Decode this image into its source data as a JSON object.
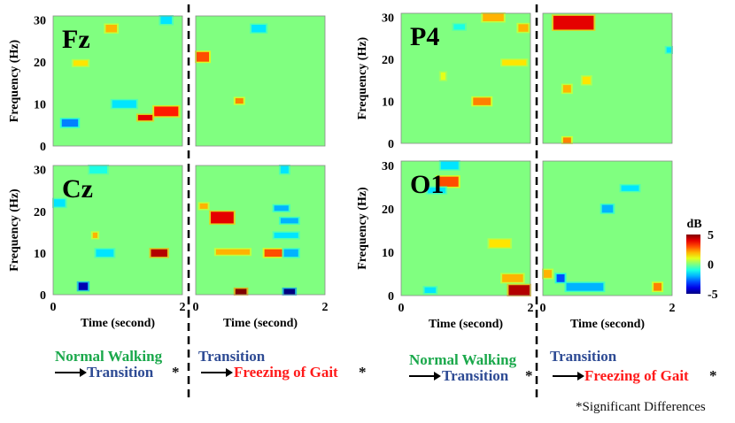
{
  "chart_data": {
    "type": "heatmap",
    "ylabel": "Frequency (Hz)",
    "xlabel": "Time (second)",
    "xlim": [
      0,
      2
    ],
    "ylim": [
      0,
      31
    ],
    "x_ticks": [
      "0",
      "2"
    ],
    "y_ticks": [
      "0",
      "10",
      "20",
      "30"
    ],
    "background_value_dB": 0,
    "colorbar": {
      "label": "dB",
      "min": -5,
      "max": 5,
      "ticks": [
        "5",
        "0",
        "-5"
      ]
    },
    "channels": [
      {
        "name": "Fz",
        "comparisons": [
          {
            "comparison": "Normal Walking → Transition",
            "blobs": [
              {
                "t": [
                  0.12,
                  0.4
                ],
                "f": [
                  4.5,
                  6.5
                ],
                "dB": -2.5
              },
              {
                "t": [
                  0.9,
                  1.3
                ],
                "f": [
                  9,
                  11
                ],
                "dB": -1.5
              },
              {
                "t": [
                  1.55,
                  1.95
                ],
                "f": [
                  7,
                  9.5
                ],
                "dB": 3.5
              },
              {
                "t": [
                  1.3,
                  1.55
                ],
                "f": [
                  6,
                  7.5
                ],
                "dB": 4
              },
              {
                "t": [
                  0.8,
                  1.0
                ],
                "f": [
                  27,
                  29
                ],
                "dB": 2
              },
              {
                "t": [
                  1.65,
                  1.85
                ],
                "f": [
                  29,
                  31
                ],
                "dB": -1.5
              },
              {
                "t": [
                  0.3,
                  0.55
                ],
                "f": [
                  19,
                  20.5
                ],
                "dB": 1.5
              }
            ]
          },
          {
            "comparison": "Transition → Freezing of Gait",
            "blobs": [
              {
                "t": [
                  0.0,
                  0.22
                ],
                "f": [
                  20,
                  22.5
                ],
                "dB": 3
              },
              {
                "t": [
                  0.85,
                  1.1
                ],
                "f": [
                  27,
                  29
                ],
                "dB": -1.5
              },
              {
                "t": [
                  0.6,
                  0.75
                ],
                "f": [
                  10,
                  11.5
                ],
                "dB": 2.5
              }
            ]
          }
        ]
      },
      {
        "name": "Cz",
        "comparisons": [
          {
            "comparison": "Normal Walking → Transition",
            "blobs": [
              {
                "t": [
                  0.65,
                  0.95
                ],
                "f": [
                  9,
                  11
                ],
                "dB": -1.5
              },
              {
                "t": [
                  1.5,
                  1.78
                ],
                "f": [
                  9,
                  11
                ],
                "dB": 4.5
              },
              {
                "t": [
                  0.38,
                  0.55
                ],
                "f": [
                  1,
                  3
                ],
                "dB": -4.5
              },
              {
                "t": [
                  0.55,
                  0.85
                ],
                "f": [
                  29,
                  31
                ],
                "dB": -1
              },
              {
                "t": [
                  0.0,
                  0.2
                ],
                "f": [
                  21,
                  23
                ],
                "dB": -1.5
              },
              {
                "t": [
                  0.6,
                  0.7
                ],
                "f": [
                  13.5,
                  15
                ],
                "dB": 2
              }
            ]
          },
          {
            "comparison": "Transition → Freezing of Gait",
            "blobs": [
              {
                "t": [
                  0.22,
                  0.6
                ],
                "f": [
                  17,
                  20
                ],
                "dB": 4
              },
              {
                "t": [
                  0.6,
                  0.8
                ],
                "f": [
                  0,
                  1.5
                ],
                "dB": 5
              },
              {
                "t": [
                  1.35,
                  1.55
                ],
                "f": [
                  0,
                  1.5
                ],
                "dB": -5
              },
              {
                "t": [
                  1.2,
                  1.45
                ],
                "f": [
                  20,
                  21.5
                ],
                "dB": -2
              },
              {
                "t": [
                  1.3,
                  1.6
                ],
                "f": [
                  17,
                  18.5
                ],
                "dB": -2
              },
              {
                "t": [
                  1.2,
                  1.6
                ],
                "f": [
                  13.5,
                  15
                ],
                "dB": -1.5
              },
              {
                "t": [
                  1.05,
                  1.35
                ],
                "f": [
                  9,
                  11
                ],
                "dB": 3
              },
              {
                "t": [
                  1.35,
                  1.6
                ],
                "f": [
                  9,
                  11
                ],
                "dB": -2
              },
              {
                "t": [
                  0.05,
                  0.2
                ],
                "f": [
                  20.5,
                  22
                ],
                "dB": 2
              },
              {
                "t": [
                  1.3,
                  1.45
                ],
                "f": [
                  29,
                  31
                ],
                "dB": -1.5
              },
              {
                "t": [
                  0.3,
                  0.85
                ],
                "f": [
                  9.5,
                  11
                ],
                "dB": 2
              }
            ]
          }
        ]
      },
      {
        "name": "P4",
        "comparisons": [
          {
            "comparison": "Normal Walking → Transition",
            "blobs": [
              {
                "t": [
                  1.25,
                  1.6
                ],
                "f": [
                  29,
                  31
                ],
                "dB": 2
              },
              {
                "t": [
                  1.55,
                  1.95
                ],
                "f": [
                  18.5,
                  20
                ],
                "dB": 1.5
              },
              {
                "t": [
                  1.8,
                  1.98
                ],
                "f": [
                  26.5,
                  28.5
                ],
                "dB": 2
              },
              {
                "t": [
                  1.1,
                  1.4
                ],
                "f": [
                  9,
                  11
                ],
                "dB": 2.5
              },
              {
                "t": [
                  0.8,
                  1.0
                ],
                "f": [
                  27,
                  28.5
                ],
                "dB": -1
              },
              {
                "t": [
                  0.6,
                  0.7
                ],
                "f": [
                  15,
                  17
                ],
                "dB": 1
              }
            ]
          },
          {
            "comparison": "Transition → Freezing of Gait",
            "blobs": [
              {
                "t": [
                  0.15,
                  0.8
                ],
                "f": [
                  27,
                  30.5
                ],
                "dB": 4
              },
              {
                "t": [
                  1.9,
                  2.0
                ],
                "f": [
                  21.5,
                  23
                ],
                "dB": -1.5
              },
              {
                "t": [
                  0.3,
                  0.45
                ],
                "f": [
                  0,
                  1.5
                ],
                "dB": 2.5
              },
              {
                "t": [
                  0.3,
                  0.45
                ],
                "f": [
                  12,
                  14
                ],
                "dB": 2
              },
              {
                "t": [
                  0.6,
                  0.75
                ],
                "f": [
                  14,
                  16
                ],
                "dB": 1.5
              }
            ]
          }
        ]
      },
      {
        "name": "O1",
        "comparisons": [
          {
            "comparison": "Normal Walking → Transition",
            "blobs": [
              {
                "t": [
                  0.55,
                  0.9
                ],
                "f": [
                  25,
                  27.5
                ],
                "dB": 3
              },
              {
                "t": [
                  0.4,
                  0.7
                ],
                "f": [
                  23.5,
                  25
                ],
                "dB": -1.5
              },
              {
                "t": [
                  1.65,
                  2.0
                ],
                "f": [
                  0,
                  2.5
                ],
                "dB": 4.5
              },
              {
                "t": [
                  0.35,
                  0.55
                ],
                "f": [
                  0.5,
                  2
                ],
                "dB": -1.5
              },
              {
                "t": [
                  1.35,
                  1.7
                ],
                "f": [
                  11,
                  13
                ],
                "dB": 1.5
              },
              {
                "t": [
                  1.55,
                  1.9
                ],
                "f": [
                  3,
                  5
                ],
                "dB": 2
              },
              {
                "t": [
                  0.6,
                  0.9
                ],
                "f": [
                  29,
                  31
                ],
                "dB": -1.5
              }
            ]
          },
          {
            "comparison": "Transition → Freezing of Gait",
            "blobs": [
              {
                "t": [
                  0.2,
                  0.35
                ],
                "f": [
                  3,
                  5
                ],
                "dB": -3
              },
              {
                "t": [
                  0.35,
                  0.95
                ],
                "f": [
                  1,
                  3
                ],
                "dB": -2
              },
              {
                "t": [
                  0.9,
                  1.1
                ],
                "f": [
                  19,
                  21
                ],
                "dB": -2
              },
              {
                "t": [
                  1.2,
                  1.5
                ],
                "f": [
                  24,
                  25.5
                ],
                "dB": -1.5
              },
              {
                "t": [
                  1.7,
                  1.85
                ],
                "f": [
                  1,
                  3
                ],
                "dB": 2.5
              },
              {
                "t": [
                  0.0,
                  0.15
                ],
                "f": [
                  4,
                  6
                ],
                "dB": 2
              }
            ]
          }
        ]
      }
    ]
  },
  "captions": {
    "normal_walking": "Normal Walking",
    "transition": "Transition",
    "freezing_of_gait": "Freezing of Gait",
    "star": "*"
  },
  "footnote": "*Significant Differences"
}
